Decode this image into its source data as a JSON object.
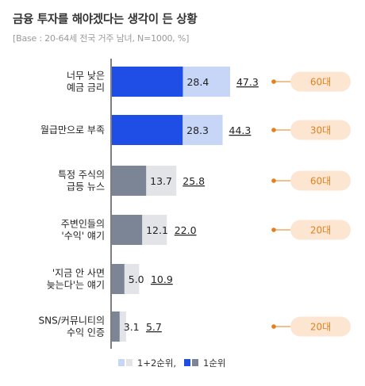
{
  "title": "금융 투자를 해야겠다는 생각이 든 상황",
  "subtitle": "[Base : 20-64세 전국 거주 남녀, N=1000, %]",
  "legend": {
    "total_label": "1+2순위,",
    "first_label": "1순위"
  },
  "colors": {
    "first_highlight": "#1f4ee6",
    "total_highlight": "#c7d6f7",
    "first_gray": "#7b8595",
    "total_gray": "#e3e4e8",
    "badge_bg": "#fce6d2",
    "badge_text": "#e3801d",
    "axis": "#3a3a3a"
  },
  "chart_data": {
    "type": "bar",
    "orientation": "horizontal",
    "categories": [
      [
        "너무 낮은",
        "예금 금리"
      ],
      [
        "월급만으로 부족"
      ],
      [
        "특정 주식의",
        "급등 뉴스"
      ],
      [
        "주변인들의",
        "'수익' 얘기"
      ],
      [
        "'지금 안 사면",
        "늦는다'는 얘기"
      ],
      [
        "SNS/커뮤니티의",
        "수익 인증"
      ]
    ],
    "series": [
      {
        "name": "1+2순위",
        "values": [
          47.3,
          44.3,
          25.8,
          22.0,
          10.9,
          5.7
        ]
      },
      {
        "name": "1순위",
        "values": [
          28.4,
          28.3,
          13.7,
          12.1,
          5.0,
          3.1
        ]
      }
    ],
    "first_labels": [
      "28.4",
      "28.3",
      "13.7",
      "12.1",
      "5.0",
      "3.1"
    ],
    "total_labels": [
      "47.3",
      "44.3",
      "25.8",
      "22.0",
      "10.9",
      "5.7"
    ],
    "highlighted": [
      true,
      true,
      false,
      false,
      false,
      false
    ],
    "age_badges": [
      "60대",
      "30대",
      "60대",
      "20대",
      "",
      "20대"
    ],
    "xlim": [
      0,
      50
    ]
  }
}
